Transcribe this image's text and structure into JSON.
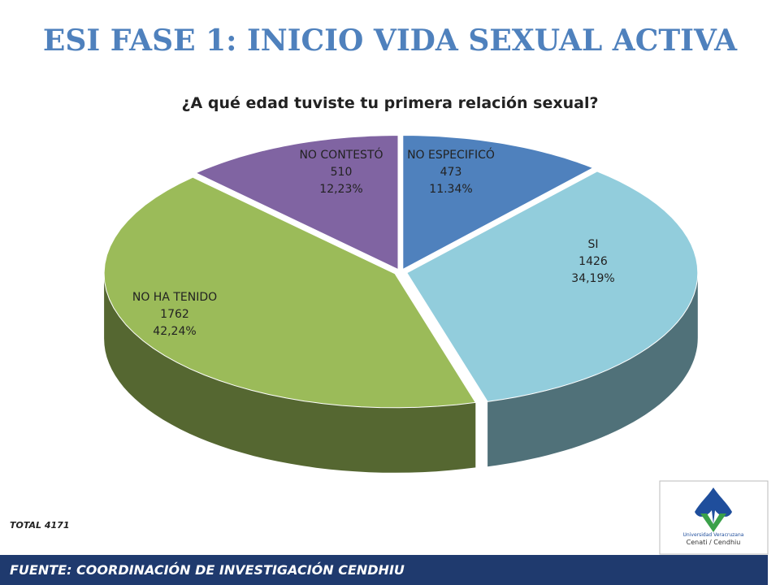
{
  "header": {
    "title": "ESI FASE 1:  INICIO VIDA SEXUAL ACTIVA"
  },
  "chart_data": {
    "type": "pie",
    "title": "¿A qué edad tuviste tu primera relación sexual?",
    "categories": [
      "NO ESPECIFICÓ",
      "SI",
      "NO HA TENIDO",
      "NO CONTESTÓ"
    ],
    "values": [
      473,
      1426,
      1762,
      510
    ],
    "percentages": {
      "values": [
        11.34,
        34.19,
        42.24,
        12.23
      ],
      "value_labels": [
        "11.34%",
        "34,19%",
        "42,24%",
        "12,23%"
      ]
    },
    "colors": [
      "#4f81bd",
      "#92cddc",
      "#9bbb59",
      "#8064a2"
    ]
  },
  "total_label": "TOTAL 4171",
  "logo": {
    "line1": "Universidad Veracruzana",
    "line2": "Cenati / Cendhiu"
  },
  "footer": {
    "text": "FUENTE:   COORDINACIÓN DE INVESTIGACIÓN CENDHIU"
  }
}
